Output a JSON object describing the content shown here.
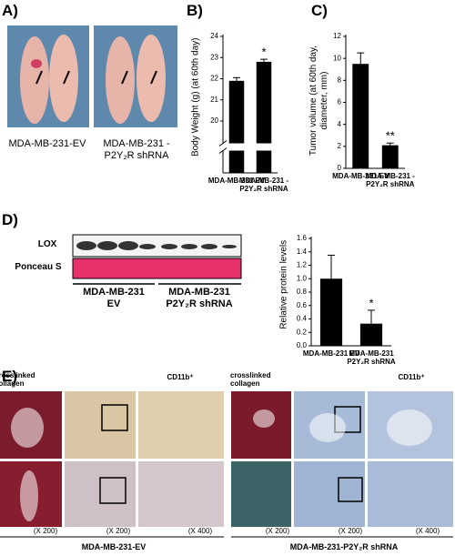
{
  "panel_labels": [
    "A)",
    "B)",
    "C)",
    "D)",
    "E)"
  ],
  "photos": {
    "captions": [
      "MDA-MB-231-EV",
      "MDA-MB-231 -P2Y₂R shRNA"
    ]
  },
  "blot": {
    "rows": [
      "LOX",
      "Ponceau S"
    ],
    "groups": [
      "MDA-MB-231 EV",
      "MDA-MB-231 P2Y₂R shRNA"
    ]
  },
  "histology": {
    "stains": [
      "crosslinked collagen",
      "CD11b⁺",
      "crosslinked collagen",
      "CD11b⁺"
    ],
    "magnifications": [
      "(X 200)",
      "(X 200)",
      "(X 400)",
      "(X 200)",
      "(X 200)",
      "(X 400)"
    ],
    "groups": [
      "MDA-MB-231-EV",
      "MDA-MB-231-P2Y₂R shRNA"
    ]
  },
  "chart_data": [
    {
      "type": "bar",
      "ylabel": "Body Weight (g) (at 60th day)",
      "categories": [
        "MDA-MB-231 EV",
        "MDA-MB-231 -P2Y₂R shRNA"
      ],
      "values": [
        21.9,
        22.8
      ],
      "errors": [
        0.15,
        0.12
      ],
      "annotations": [
        null,
        "*"
      ],
      "color": "#000000",
      "ylim": [
        20,
        24
      ],
      "yticks": [
        20,
        21,
        22,
        23,
        24
      ],
      "axis_break": true
    },
    {
      "type": "bar",
      "ylabel": "Tumor volume (at 60th day, diameter, mm)",
      "categories": [
        "MDA-MB-231 EV",
        "MDA-MB-231 -P2Y₂R shRNA"
      ],
      "values": [
        9.5,
        2.1
      ],
      "errors": [
        1.0,
        0.2
      ],
      "annotations": [
        null,
        "**"
      ],
      "color": "#000000",
      "ylim": [
        0,
        12
      ],
      "yticks": [
        0,
        2,
        4,
        6,
        8,
        10,
        12
      ],
      "axis_break": false
    },
    {
      "type": "bar",
      "ylabel": "Relative protein levels",
      "categories": [
        "MDA-MB-231 EV",
        "MDA-MB-231 P2Y₂R shRNA"
      ],
      "values": [
        1.0,
        0.33
      ],
      "errors": [
        0.35,
        0.2
      ],
      "annotations": [
        null,
        "*"
      ],
      "color": "#000000",
      "ylim": [
        0,
        1.6
      ],
      "yticks": [
        {
          "value": 0,
          "label": "0.0"
        },
        0.2,
        0.4,
        0.6,
        0.8,
        {
          "value": 1,
          "label": "1.0"
        },
        1.2,
        1.4,
        1.6
      ],
      "axis_break": false
    }
  ]
}
